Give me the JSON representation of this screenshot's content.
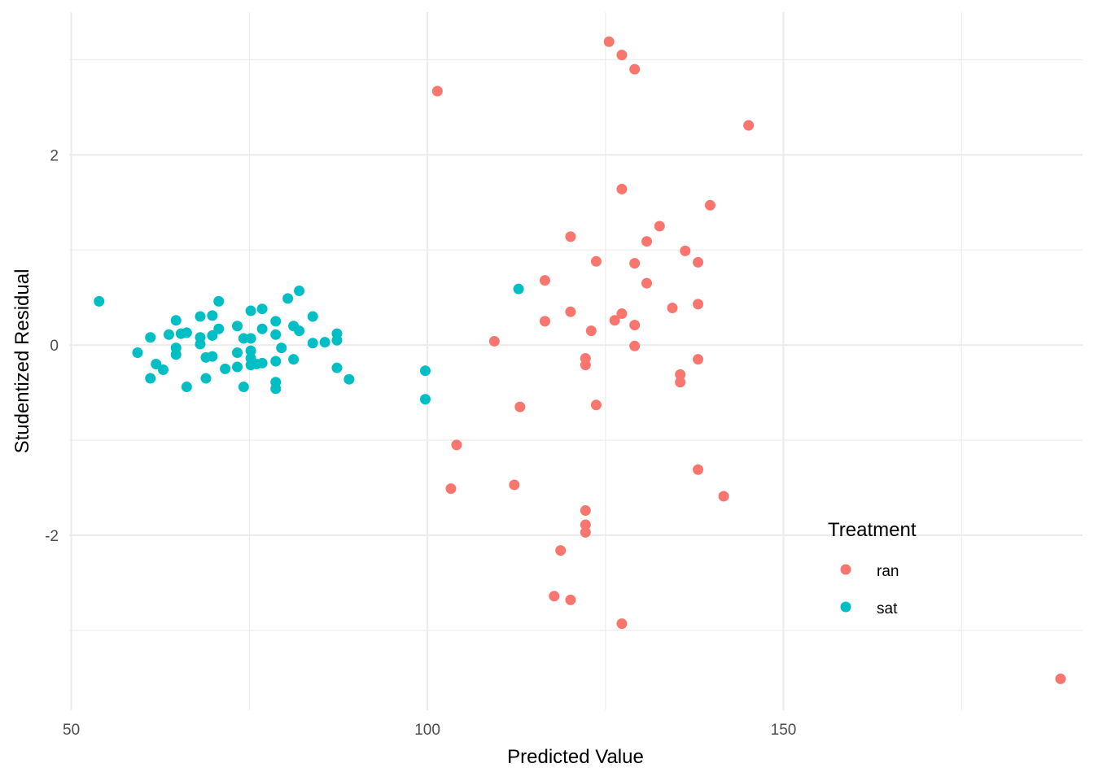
{
  "chart_data": {
    "type": "scatter",
    "title": "",
    "xlabel": "Predicted Value",
    "ylabel": "Studentized Residual",
    "xlim": [
      49.7,
      192
    ],
    "ylim": [
      -3.84,
      3.5
    ],
    "x_ticks": [
      50,
      100,
      150
    ],
    "x_tick_labels": [
      "50",
      "100",
      "150"
    ],
    "x_minor_ticks": [
      75,
      125,
      175
    ],
    "y_ticks": [
      -2,
      0,
      2
    ],
    "y_tick_labels": [
      "-2",
      "0",
      "2"
    ],
    "y_minor_ticks": [
      -3,
      -1,
      1,
      3
    ],
    "grid": true,
    "legend": {
      "title": "Treatment",
      "placement": "right-bottom-inside",
      "entries": [
        {
          "label": "ran",
          "color": "#F8766D"
        },
        {
          "label": "sat",
          "color": "#00BFC4"
        }
      ]
    },
    "series": [
      {
        "name": "ran",
        "color": "#F8766D",
        "points": [
          [
            125.5,
            3.19
          ],
          [
            127.3,
            3.05
          ],
          [
            129.1,
            2.9
          ],
          [
            101.4,
            2.67
          ],
          [
            145.1,
            2.31
          ],
          [
            127.3,
            1.64
          ],
          [
            139.7,
            1.47
          ],
          [
            132.6,
            1.25
          ],
          [
            120.1,
            1.14
          ],
          [
            130.8,
            1.09
          ],
          [
            136.2,
            0.99
          ],
          [
            123.7,
            0.88
          ],
          [
            129.1,
            0.86
          ],
          [
            138.0,
            0.87
          ],
          [
            116.5,
            0.68
          ],
          [
            130.8,
            0.65
          ],
          [
            120.1,
            0.35
          ],
          [
            127.3,
            0.33
          ],
          [
            134.4,
            0.39
          ],
          [
            138.0,
            0.43
          ],
          [
            116.5,
            0.25
          ],
          [
            126.3,
            0.26
          ],
          [
            129.1,
            0.21
          ],
          [
            123.0,
            0.15
          ],
          [
            109.4,
            0.04
          ],
          [
            129.1,
            -0.01
          ],
          [
            122.2,
            -0.14
          ],
          [
            122.2,
            -0.21
          ],
          [
            135.5,
            -0.31
          ],
          [
            135.5,
            -0.39
          ],
          [
            138.0,
            -0.15
          ],
          [
            113.0,
            -0.65
          ],
          [
            123.7,
            -0.63
          ],
          [
            104.1,
            -1.05
          ],
          [
            103.3,
            -1.51
          ],
          [
            112.2,
            -1.47
          ],
          [
            138.0,
            -1.31
          ],
          [
            141.6,
            -1.59
          ],
          [
            122.2,
            -1.74
          ],
          [
            122.2,
            -1.89
          ],
          [
            122.2,
            -1.97
          ],
          [
            118.7,
            -2.16
          ],
          [
            117.8,
            -2.64
          ],
          [
            120.1,
            -2.68
          ],
          [
            127.3,
            -2.93
          ],
          [
            188.9,
            -3.51
          ]
        ]
      },
      {
        "name": "sat",
        "color": "#00BFC4",
        "points": [
          [
            53.9,
            0.46
          ],
          [
            59.3,
            -0.08
          ],
          [
            61.1,
            0.08
          ],
          [
            61.1,
            -0.35
          ],
          [
            61.9,
            -0.2
          ],
          [
            62.9,
            -0.26
          ],
          [
            63.7,
            0.11
          ],
          [
            64.7,
            0.26
          ],
          [
            64.7,
            -0.03
          ],
          [
            64.7,
            -0.1
          ],
          [
            65.4,
            0.12
          ],
          [
            66.2,
            0.13
          ],
          [
            66.2,
            -0.44
          ],
          [
            68.1,
            0.3
          ],
          [
            68.1,
            0.08
          ],
          [
            68.1,
            0.01
          ],
          [
            68.9,
            -0.13
          ],
          [
            68.9,
            -0.35
          ],
          [
            69.8,
            0.31
          ],
          [
            69.8,
            0.1
          ],
          [
            69.8,
            -0.12
          ],
          [
            70.7,
            0.46
          ],
          [
            70.7,
            0.17
          ],
          [
            71.6,
            -0.25
          ],
          [
            73.3,
            0.2
          ],
          [
            73.3,
            -0.08
          ],
          [
            73.3,
            -0.23
          ],
          [
            74.2,
            0.07
          ],
          [
            74.2,
            -0.44
          ],
          [
            75.2,
            0.36
          ],
          [
            75.2,
            0.07
          ],
          [
            75.2,
            -0.06
          ],
          [
            75.2,
            -0.14
          ],
          [
            75.2,
            -0.21
          ],
          [
            76.0,
            -0.2
          ],
          [
            76.8,
            0.38
          ],
          [
            76.8,
            0.17
          ],
          [
            76.8,
            -0.19
          ],
          [
            78.7,
            0.25
          ],
          [
            78.7,
            0.11
          ],
          [
            78.7,
            -0.17
          ],
          [
            78.7,
            -0.39
          ],
          [
            78.7,
            -0.46
          ],
          [
            79.5,
            -0.03
          ],
          [
            80.4,
            0.49
          ],
          [
            81.2,
            0.2
          ],
          [
            81.2,
            -0.15
          ],
          [
            82.0,
            0.57
          ],
          [
            82.0,
            0.15
          ],
          [
            83.9,
            0.3
          ],
          [
            83.9,
            0.02
          ],
          [
            85.6,
            0.03
          ],
          [
            87.3,
            0.12
          ],
          [
            87.3,
            0.05
          ],
          [
            87.3,
            -0.24
          ],
          [
            89.0,
            -0.36
          ],
          [
            99.7,
            -0.27
          ],
          [
            99.7,
            -0.57
          ],
          [
            112.8,
            0.59
          ]
        ]
      }
    ]
  }
}
